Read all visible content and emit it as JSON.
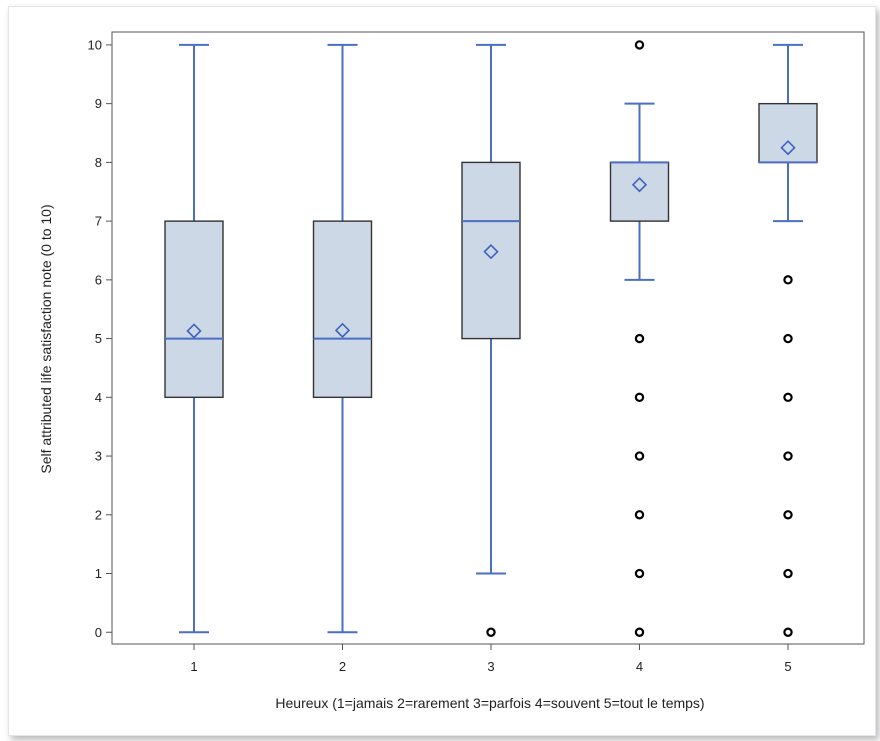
{
  "chart_data": {
    "type": "boxplot",
    "xlabel": "Heureux (1=jamais 2=rarement 3=parfois 4=souvent 5=tout le temps)",
    "ylabel": "Self attributed life satisfaction note (0 to 10)",
    "categories": [
      "1",
      "2",
      "3",
      "4",
      "5"
    ],
    "yticks": [
      "0",
      "1",
      "2",
      "3",
      "4",
      "5",
      "6",
      "7",
      "8",
      "9",
      "10"
    ],
    "ylim": [
      -0.2,
      10.22
    ],
    "grid": false,
    "boxes": [
      {
        "category": "1",
        "whisker_low": 0,
        "q1": 4,
        "median": 5,
        "q3": 7,
        "whisker_high": 10,
        "mean": 5.13,
        "outliers": []
      },
      {
        "category": "2",
        "whisker_low": 0,
        "q1": 4,
        "median": 5,
        "q3": 7,
        "whisker_high": 10,
        "mean": 5.14,
        "outliers": []
      },
      {
        "category": "3",
        "whisker_low": 1,
        "q1": 5,
        "median": 7,
        "q3": 8,
        "whisker_high": 10,
        "mean": 6.48,
        "outliers": [
          0
        ]
      },
      {
        "category": "4",
        "whisker_low": 6,
        "q1": 7,
        "median": 8,
        "q3": 8,
        "whisker_high": 9,
        "mean": 7.62,
        "outliers": [
          0,
          1,
          2,
          3,
          4,
          5,
          10
        ]
      },
      {
        "category": "5",
        "whisker_low": 7,
        "q1": 8,
        "median": 8,
        "q3": 9,
        "whisker_high": 10,
        "mean": 8.25,
        "outliers": [
          0,
          1,
          2,
          3,
          4,
          5,
          6
        ]
      }
    ],
    "colors": {
      "box_fill": "#cdd8e6",
      "box_edge": "#333333",
      "whisker": "#4a6fc4",
      "median": "#4a6fc4",
      "mean_marker": "#3d62c0",
      "outlier": "#000000"
    }
  }
}
